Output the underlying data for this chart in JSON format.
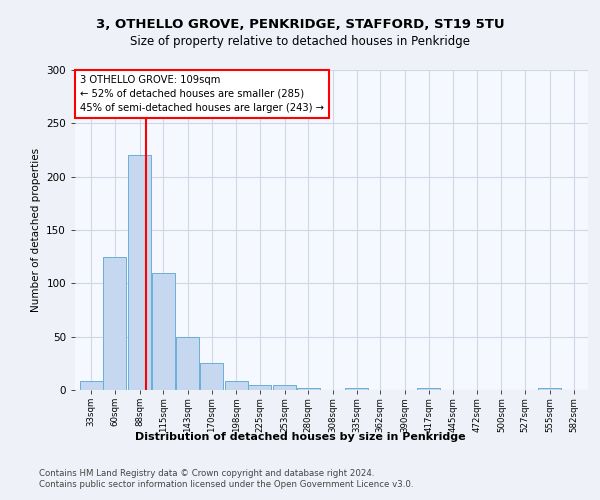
{
  "title1": "3, OTHELLO GROVE, PENKRIDGE, STAFFORD, ST19 5TU",
  "title2": "Size of property relative to detached houses in Penkridge",
  "xlabel": "Distribution of detached houses by size in Penkridge",
  "ylabel": "Number of detached properties",
  "bin_labels": [
    "33sqm",
    "60sqm",
    "88sqm",
    "115sqm",
    "143sqm",
    "170sqm",
    "198sqm",
    "225sqm",
    "253sqm",
    "280sqm",
    "308sqm",
    "335sqm",
    "362sqm",
    "390sqm",
    "417sqm",
    "445sqm",
    "472sqm",
    "500sqm",
    "527sqm",
    "555sqm",
    "582sqm"
  ],
  "bin_edges": [
    33,
    60,
    88,
    115,
    143,
    170,
    198,
    225,
    253,
    280,
    308,
    335,
    362,
    390,
    417,
    445,
    472,
    500,
    527,
    555,
    582
  ],
  "bar_heights": [
    8,
    125,
    220,
    110,
    50,
    25,
    8,
    5,
    5,
    2,
    0,
    2,
    0,
    0,
    2,
    0,
    0,
    0,
    0,
    2,
    0
  ],
  "bar_color": "#c5d8f0",
  "bar_edge_color": "#6aaed6",
  "red_line_x": 109,
  "ylim": [
    0,
    300
  ],
  "yticks": [
    0,
    50,
    100,
    150,
    200,
    250,
    300
  ],
  "annotation_line1": "3 OTHELLO GROVE: 109sqm",
  "annotation_line2": "← 52% of detached houses are smaller (285)",
  "annotation_line3": "45% of semi-detached houses are larger (243) →",
  "footer1": "Contains HM Land Registry data © Crown copyright and database right 2024.",
  "footer2": "Contains public sector information licensed under the Open Government Licence v3.0.",
  "bg_color": "#eef2f8",
  "plot_bg_color": "#f5f8fe",
  "grid_color": "#d0d8e8"
}
